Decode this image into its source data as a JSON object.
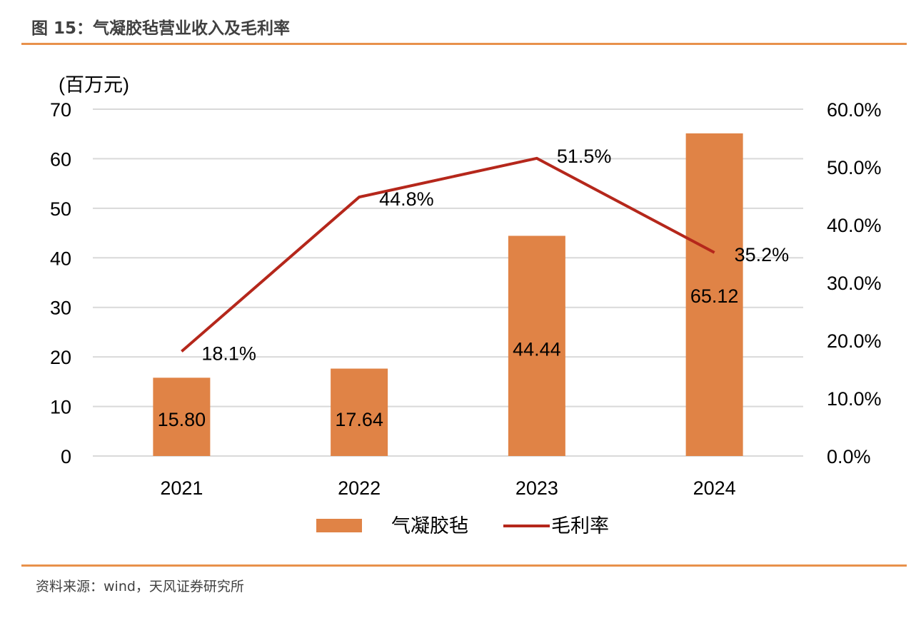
{
  "header": {
    "title": "图 15：气凝胶毡营业收入及毛利率"
  },
  "footer": {
    "source": "资料来源：wind，天风证券研究所"
  },
  "colors": {
    "bar": "#E08346",
    "line": "#B5271B",
    "grid": "#D9D9D9",
    "rule": "#E8914B"
  },
  "chart_data": {
    "type": "bar+line",
    "categories": [
      "2021",
      "2022",
      "2023",
      "2024"
    ],
    "series": [
      {
        "name": "气凝胶毡",
        "type": "bar",
        "axis": "left",
        "values": [
          15.8,
          17.64,
          44.44,
          65.12
        ],
        "labels": [
          "15.80",
          "17.64",
          "44.44",
          "65.12"
        ]
      },
      {
        "name": "毛利率",
        "type": "line",
        "axis": "right",
        "values": [
          18.1,
          44.8,
          51.5,
          35.2
        ],
        "labels": [
          "18.1%",
          "44.8%",
          "51.5%",
          "35.2%"
        ]
      }
    ],
    "left_axis": {
      "unit_label": "(百万元)",
      "ylim": [
        0,
        70
      ],
      "ticks": [
        "0",
        "10",
        "20",
        "30",
        "40",
        "50",
        "60",
        "70"
      ]
    },
    "right_axis": {
      "ylim": [
        0,
        60
      ],
      "ticks": [
        "0.0%",
        "10.0%",
        "20.0%",
        "30.0%",
        "40.0%",
        "50.0%",
        "60.0%"
      ]
    },
    "grid": true,
    "legend": "bottom-center"
  }
}
